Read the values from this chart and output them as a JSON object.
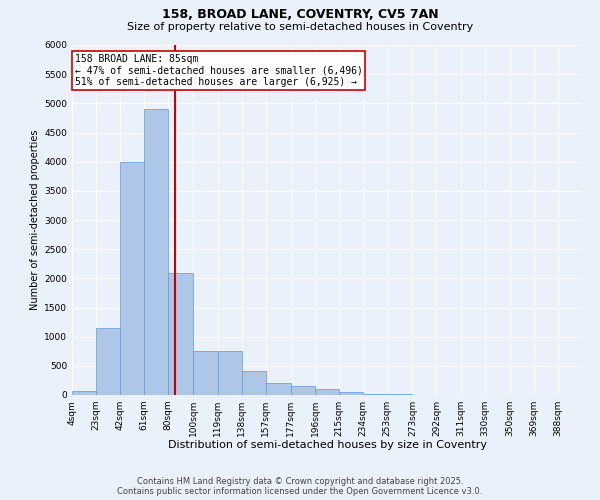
{
  "title1": "158, BROAD LANE, COVENTRY, CV5 7AN",
  "title2": "Size of property relative to semi-detached houses in Coventry",
  "xlabel": "Distribution of semi-detached houses by size in Coventry",
  "ylabel": "Number of semi-detached properties",
  "annotation_title": "158 BROAD LANE: 85sqm",
  "annotation_line1": "← 47% of semi-detached houses are smaller (6,496)",
  "annotation_line2": "51% of semi-detached houses are larger (6,925) →",
  "property_size": 85,
  "categories": [
    "4sqm",
    "23sqm",
    "42sqm",
    "61sqm",
    "80sqm",
    "100sqm",
    "119sqm",
    "138sqm",
    "157sqm",
    "177sqm",
    "196sqm",
    "215sqm",
    "234sqm",
    "253sqm",
    "273sqm",
    "292sqm",
    "311sqm",
    "330sqm",
    "350sqm",
    "369sqm",
    "388sqm"
  ],
  "bin_edges": [
    4,
    23,
    42,
    61,
    80,
    100,
    119,
    138,
    157,
    177,
    196,
    215,
    234,
    253,
    273,
    292,
    311,
    330,
    350,
    369,
    388
  ],
  "values": [
    75,
    1150,
    4000,
    4900,
    2100,
    750,
    750,
    410,
    210,
    150,
    100,
    50,
    20,
    10,
    5,
    2,
    1,
    1,
    0,
    0,
    0
  ],
  "bar_color": "#aec6e8",
  "bar_edge_color": "#5b9bd5",
  "line_color": "#cc0000",
  "bg_color": "#eaf1fb",
  "grid_color": "#ffffff",
  "annotation_box_color": "#ffffff",
  "annotation_box_edge": "#cc0000",
  "footer": "Contains HM Land Registry data © Crown copyright and database right 2025.\nContains public sector information licensed under the Open Government Licence v3.0.",
  "ylim": [
    0,
    6000
  ],
  "yticks": [
    0,
    500,
    1000,
    1500,
    2000,
    2500,
    3000,
    3500,
    4000,
    4500,
    5000,
    5500,
    6000
  ],
  "title1_fontsize": 9,
  "title2_fontsize": 8,
  "xlabel_fontsize": 8,
  "ylabel_fontsize": 7,
  "tick_fontsize": 6.5,
  "footer_fontsize": 6,
  "annotation_fontsize": 7
}
